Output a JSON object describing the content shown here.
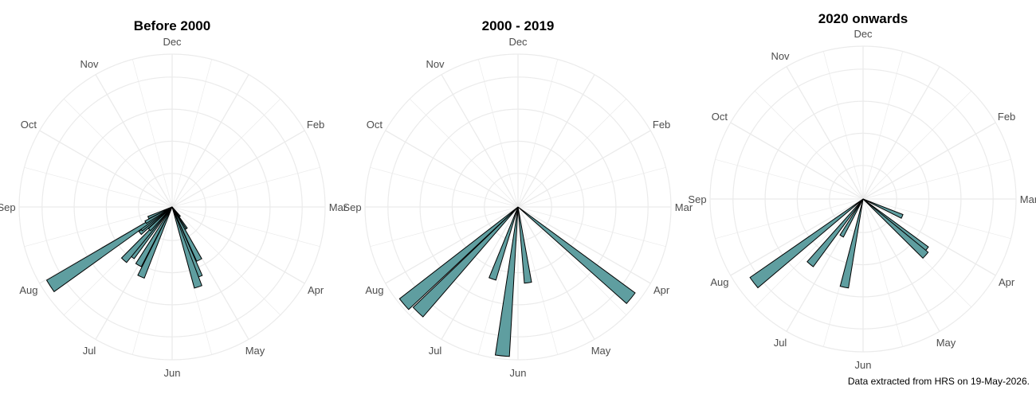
{
  "caption": "Data extracted from HRS on 19-May-2026.",
  "chart_data": [
    {
      "type": "bar",
      "polar": true,
      "title": "Before 2000",
      "month_labels": [
        "Dec",
        "Feb",
        "Mar",
        "Apr",
        "May",
        "Jun",
        "Jul",
        "Aug",
        "Sep",
        "Oct",
        "Nov"
      ],
      "bars": [
        {
          "angle": 4.7,
          "value": 0.08
        },
        {
          "angle": 4.8,
          "value": 0.04
        },
        {
          "angle": 4.9,
          "value": 0.17
        },
        {
          "angle": 5.0,
          "value": 0.17
        },
        {
          "angle": 5.1,
          "value": 0.39
        },
        {
          "angle": 5.3,
          "value": 0.49
        },
        {
          "angle": 5.4,
          "value": 0.55
        },
        {
          "angle": 6.8,
          "value": 0.5
        },
        {
          "angle": 7.0,
          "value": 0.44
        },
        {
          "angle": 7.3,
          "value": 0.42
        },
        {
          "angle": 7.4,
          "value": 0.47
        },
        {
          "angle": 7.5,
          "value": 0.21
        },
        {
          "angle": 7.7,
          "value": 0.27
        },
        {
          "angle": 7.8,
          "value": 0.25
        },
        {
          "angle": 7.9,
          "value": 0.95
        },
        {
          "angle": 8.0,
          "value": 0.2
        },
        {
          "angle": 8.2,
          "value": 0.17
        }
      ]
    },
    {
      "type": "bar",
      "polar": true,
      "title": "2000 - 2019",
      "month_labels": [
        "Dec",
        "Feb",
        "Mar",
        "Apr",
        "May",
        "Jun",
        "Jul",
        "Aug",
        "Sep",
        "Oct",
        "Nov"
      ],
      "bars": [
        {
          "angle": 4.3,
          "value": 0.95
        },
        {
          "angle": 5.75,
          "value": 0.5
        },
        {
          "angle": 6.2,
          "value": 0.98
        },
        {
          "angle": 6.65,
          "value": 0.5
        },
        {
          "angle": 7.45,
          "value": 0.95
        },
        {
          "angle": 7.65,
          "value": 0.98
        }
      ]
    },
    {
      "type": "bar",
      "polar": true,
      "title": "2020 onwards",
      "month_labels": [
        "Dec",
        "Feb",
        "Mar",
        "Apr",
        "May",
        "Jun",
        "Jul",
        "Aug",
        "Sep",
        "Oct",
        "Nov"
      ],
      "bars": [
        {
          "angle": 3.8,
          "value": 0.28
        },
        {
          "angle": 4.3,
          "value": 0.53
        },
        {
          "angle": 4.4,
          "value": 0.55
        },
        {
          "angle": 6.4,
          "value": 0.59
        },
        {
          "angle": 7.0,
          "value": 0.28
        },
        {
          "angle": 7.3,
          "value": 0.55
        },
        {
          "angle": 7.75,
          "value": 0.9
        }
      ]
    }
  ],
  "colors": {
    "bar_fill": "#5f9ea0",
    "bar_stroke": "#000000",
    "grid": "#ebebeb",
    "label": "#4d4d4d"
  }
}
